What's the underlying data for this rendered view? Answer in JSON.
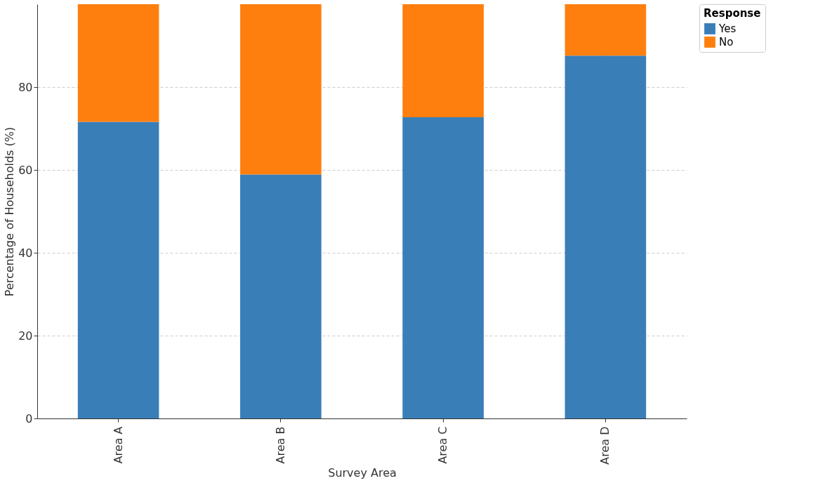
{
  "chart_data": {
    "type": "bar",
    "stacked": true,
    "xlabel": "Survey Area",
    "ylabel": "Percentage of Households (%)",
    "legend_title": "Response",
    "categories": [
      "Area A",
      "Area B",
      "Area C",
      "Area D"
    ],
    "series": [
      {
        "name": "Yes",
        "color": "#3a7eb8",
        "values": [
          71.6,
          58.9,
          72.7,
          87.6
        ]
      },
      {
        "name": "No",
        "color": "#ff7f0e",
        "values": [
          28.4,
          41.1,
          27.3,
          12.4
        ]
      }
    ],
    "ylim": [
      0,
      100
    ],
    "yticks": [
      0,
      20,
      40,
      60,
      80
    ],
    "grid": true,
    "legend": "top right"
  }
}
